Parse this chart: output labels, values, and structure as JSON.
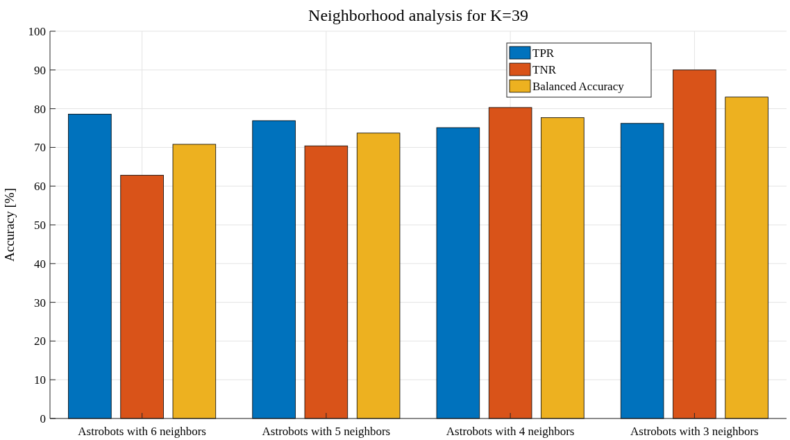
{
  "chart_data": {
    "type": "bar",
    "title": "Neighborhood analysis for K=39",
    "ylabel": "Accuracy [%]",
    "categories": [
      "Astrobots with 6 neighbors",
      "Astrobots with 5 neighbors",
      "Astrobots with 4 neighbors",
      "Astrobots with 3 neighbors"
    ],
    "series": [
      {
        "name": "TPR",
        "color": "#0072bd",
        "values": [
          78.6,
          76.9,
          75.1,
          76.2
        ]
      },
      {
        "name": "TNR",
        "color": "#d95319",
        "values": [
          62.8,
          70.4,
          80.3,
          90.0
        ]
      },
      {
        "name": "Balanced Accuracy",
        "color": "#edb120",
        "values": [
          70.8,
          73.7,
          77.7,
          83.0
        ]
      }
    ],
    "ylim": [
      0,
      100
    ],
    "yticks": [
      0,
      10,
      20,
      30,
      40,
      50,
      60,
      70,
      80,
      90,
      100
    ],
    "grid": true,
    "legend": "top right"
  }
}
